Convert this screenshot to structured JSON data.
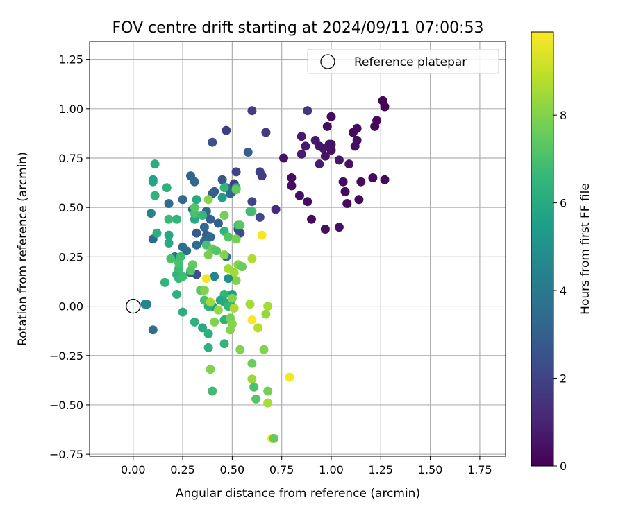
{
  "colors": {
    "grid": "#b0b0b0",
    "axis": "#000000",
    "reference_marker": "#000000",
    "viridis_stops": [
      "#440154",
      "#482878",
      "#3e4989",
      "#31688e",
      "#26828e",
      "#1f9e89",
      "#35b779",
      "#6ece58",
      "#b5de2b",
      "#fde725"
    ]
  },
  "chart_data": {
    "type": "scatter",
    "title": "FOV centre drift starting at 2024/09/11 07:00:53",
    "xlabel": "Angular distance from reference (arcmin)",
    "ylabel": "Rotation from reference (arcmin)",
    "xlim": [
      -0.22,
      1.88
    ],
    "ylim": [
      -0.76,
      1.34
    ],
    "xticks": [
      "0.00",
      "0.25",
      "0.50",
      "0.75",
      "1.00",
      "1.25",
      "1.50",
      "1.75"
    ],
    "xtick_values": [
      0,
      0.25,
      0.5,
      0.75,
      1.0,
      1.25,
      1.5,
      1.75
    ],
    "yticks": [
      "−0.75",
      "−0.50",
      "−0.25",
      "0.00",
      "0.25",
      "0.50",
      "0.75",
      "1.00",
      "1.25"
    ],
    "ytick_values": [
      -0.75,
      -0.5,
      -0.25,
      0,
      0.25,
      0.5,
      0.75,
      1.0,
      1.25
    ],
    "grid": true,
    "legend": {
      "placement": "top-right",
      "entries": [
        "Reference platepar"
      ]
    },
    "reference_point": {
      "x": 0.0,
      "y": 0.0
    },
    "colorbar": {
      "label": "Hours from first FF file",
      "range": [
        0,
        9.9
      ],
      "ticks": [
        "0",
        "2",
        "4",
        "6",
        "8"
      ],
      "tick_values": [
        0,
        2,
        4,
        6,
        8
      ],
      "colormap": "viridis"
    },
    "point_fields": [
      "x",
      "y",
      "hours"
    ],
    "points": [
      [
        0.6,
        0.99,
        1.8
      ],
      [
        0.88,
        0.99,
        1.6
      ],
      [
        0.47,
        0.89,
        1.8
      ],
      [
        0.67,
        0.88,
        1.7
      ],
      [
        0.4,
        0.83,
        2.5
      ],
      [
        0.58,
        0.78,
        3.0
      ],
      [
        1.0,
        0.96,
        0.3
      ],
      [
        0.98,
        0.91,
        0.4
      ],
      [
        1.26,
        1.04,
        0.1
      ],
      [
        1.27,
        1.01,
        0.1
      ],
      [
        1.23,
        0.94,
        0.2
      ],
      [
        1.22,
        0.91,
        0.2
      ],
      [
        1.13,
        0.9,
        0.3
      ],
      [
        1.11,
        0.88,
        0.3
      ],
      [
        1.13,
        0.84,
        0.4
      ],
      [
        1.12,
        0.81,
        0.4
      ],
      [
        0.85,
        0.86,
        0.7
      ],
      [
        0.92,
        0.84,
        0.7
      ],
      [
        0.94,
        0.81,
        0.6
      ],
      [
        0.96,
        0.8,
        0.6
      ],
      [
        0.99,
        0.82,
        0.5
      ],
      [
        1.0,
        0.82,
        0.5
      ],
      [
        1.0,
        0.79,
        0.5
      ],
      [
        0.97,
        0.76,
        0.5
      ],
      [
        0.87,
        0.81,
        0.7
      ],
      [
        0.85,
        0.77,
        0.7
      ],
      [
        0.94,
        0.72,
        0.8
      ],
      [
        1.04,
        0.74,
        0.6
      ],
      [
        1.09,
        0.72,
        0.5
      ],
      [
        0.76,
        0.75,
        0.5
      ],
      [
        0.8,
        0.65,
        0.4
      ],
      [
        0.8,
        0.61,
        0.4
      ],
      [
        0.84,
        0.56,
        0.4
      ],
      [
        0.88,
        0.53,
        0.4
      ],
      [
        1.06,
        0.63,
        0.3
      ],
      [
        1.07,
        0.58,
        0.3
      ],
      [
        1.15,
        0.63,
        0.3
      ],
      [
        1.21,
        0.65,
        0.3
      ],
      [
        1.27,
        0.64,
        0.2
      ],
      [
        1.14,
        0.54,
        0.2
      ],
      [
        1.08,
        0.52,
        0.3
      ],
      [
        0.9,
        0.44,
        0.3
      ],
      [
        0.97,
        0.39,
        0.4
      ],
      [
        1.04,
        0.4,
        0.4
      ],
      [
        0.72,
        0.49,
        1.2
      ],
      [
        0.64,
        0.68,
        1.9
      ],
      [
        0.65,
        0.66,
        1.8
      ],
      [
        0.52,
        0.68,
        2.0
      ],
      [
        0.5,
        0.58,
        1.9
      ],
      [
        0.51,
        0.62,
        1.9
      ],
      [
        0.6,
        0.53,
        2.1
      ],
      [
        0.64,
        0.45,
        2.2
      ],
      [
        0.45,
        0.64,
        2.7
      ],
      [
        0.47,
        0.6,
        3.2
      ],
      [
        0.49,
        0.57,
        3.4
      ],
      [
        0.41,
        0.58,
        2.7
      ],
      [
        0.4,
        0.57,
        3.0
      ],
      [
        0.29,
        0.66,
        3.2
      ],
      [
        0.31,
        0.63,
        3.3
      ],
      [
        0.25,
        0.54,
        3.4
      ],
      [
        0.18,
        0.52,
        3.5
      ],
      [
        0.3,
        0.49,
        3.5
      ],
      [
        0.37,
        0.48,
        3.3
      ],
      [
        0.39,
        0.44,
        3.0
      ],
      [
        0.43,
        0.42,
        3.0
      ],
      [
        0.36,
        0.4,
        3.4
      ],
      [
        0.32,
        0.37,
        2.8
      ],
      [
        0.37,
        0.36,
        3.0
      ],
      [
        0.39,
        0.35,
        3.3
      ],
      [
        0.36,
        0.33,
        3.4
      ],
      [
        0.32,
        0.31,
        3.5
      ],
      [
        0.25,
        0.3,
        3.5
      ],
      [
        0.27,
        0.28,
        3.5
      ],
      [
        0.21,
        0.25,
        3.7
      ],
      [
        0.54,
        0.37,
        2.3
      ],
      [
        0.53,
        0.39,
        2.3
      ],
      [
        0.47,
        0.25,
        3.5
      ],
      [
        0.41,
        0.15,
        4.5
      ],
      [
        0.32,
        0.16,
        2.4
      ],
      [
        0.29,
        0.17,
        3.0
      ],
      [
        0.1,
        0.34,
        3.5
      ],
      [
        0.07,
        0.01,
        4.2
      ],
      [
        0.06,
        0.01,
        4.5
      ],
      [
        0.1,
        -0.12,
        3.6
      ],
      [
        0.09,
        0.47,
        4.5
      ],
      [
        0.1,
        0.64,
        5.5
      ],
      [
        0.1,
        0.63,
        5.8
      ],
      [
        0.11,
        0.72,
        6.1
      ],
      [
        0.11,
        0.56,
        6.4
      ],
      [
        0.17,
        0.6,
        6.3
      ],
      [
        0.12,
        0.37,
        6.2
      ],
      [
        0.18,
        0.36,
        5.9
      ],
      [
        0.18,
        0.32,
        6.0
      ],
      [
        0.16,
        0.12,
        6.5
      ],
      [
        0.22,
        0.06,
        6.3
      ],
      [
        0.25,
        -0.03,
        6.2
      ],
      [
        0.22,
        0.16,
        6.4
      ],
      [
        0.23,
        0.14,
        6.6
      ],
      [
        0.25,
        0.15,
        6.8
      ],
      [
        0.23,
        0.19,
        6.8
      ],
      [
        0.23,
        0.22,
        7.0
      ],
      [
        0.24,
        0.25,
        6.8
      ],
      [
        0.19,
        0.24,
        7.0
      ],
      [
        0.22,
        0.44,
        6.5
      ],
      [
        0.18,
        0.44,
        6.7
      ],
      [
        0.31,
        0.44,
        6.0
      ],
      [
        0.31,
        0.47,
        7.0
      ],
      [
        0.31,
        0.5,
        7.2
      ],
      [
        0.35,
        0.46,
        6.6
      ],
      [
        0.32,
        0.54,
        6.0
      ],
      [
        0.38,
        0.54,
        8.1
      ],
      [
        0.45,
        0.55,
        5.5
      ],
      [
        0.46,
        0.6,
        6.5
      ],
      [
        0.52,
        0.6,
        6.2
      ],
      [
        0.53,
        0.41,
        6.8
      ],
      [
        0.54,
        0.41,
        7.3
      ],
      [
        0.46,
        0.46,
        7.8
      ],
      [
        0.46,
        0.38,
        6.5
      ],
      [
        0.48,
        0.35,
        7.2
      ],
      [
        0.52,
        0.34,
        7.8
      ],
      [
        0.37,
        0.31,
        7.0
      ],
      [
        0.4,
        0.29,
        7.5
      ],
      [
        0.42,
        0.28,
        7.2
      ],
      [
        0.38,
        0.26,
        7.8
      ],
      [
        0.46,
        0.26,
        8.0
      ],
      [
        0.3,
        0.21,
        7.5
      ],
      [
        0.29,
        0.18,
        7.2
      ],
      [
        0.34,
        0.08,
        7.3
      ],
      [
        0.36,
        0.08,
        8.0
      ],
      [
        0.37,
        0.14,
        9.8
      ],
      [
        0.48,
        0.19,
        8.5
      ],
      [
        0.53,
        0.21,
        8.0
      ],
      [
        0.55,
        0.2,
        7.6
      ],
      [
        0.51,
        0.17,
        8.5
      ],
      [
        0.52,
        0.13,
        8.0
      ],
      [
        0.48,
        0.14,
        5.0
      ],
      [
        0.5,
        0.06,
        5.5
      ],
      [
        0.46,
        0.06,
        6.5
      ],
      [
        0.44,
        0.03,
        5.8
      ],
      [
        0.46,
        0.02,
        6.0
      ],
      [
        0.49,
        0.02,
        6.0
      ],
      [
        0.5,
        0.04,
        8.0
      ],
      [
        0.48,
        0.0,
        6.5
      ],
      [
        0.4,
        0.0,
        5.6
      ],
      [
        0.38,
        0.0,
        6.2
      ],
      [
        0.36,
        0.03,
        7.0
      ],
      [
        0.39,
        0.02,
        8.5
      ],
      [
        0.43,
        -0.02,
        8.3
      ],
      [
        0.46,
        -0.07,
        6.3
      ],
      [
        0.49,
        -0.06,
        7.8
      ],
      [
        0.5,
        -0.09,
        8.1
      ],
      [
        0.49,
        -0.12,
        8.0
      ],
      [
        0.51,
        -0.01,
        8.6
      ],
      [
        0.41,
        -0.08,
        8.0
      ],
      [
        0.35,
        -0.11,
        6.0
      ],
      [
        0.31,
        -0.08,
        6.3
      ],
      [
        0.38,
        -0.14,
        6.2
      ],
      [
        0.38,
        -0.21,
        6.3
      ],
      [
        0.46,
        -0.19,
        6.5
      ],
      [
        0.54,
        -0.22,
        8.0
      ],
      [
        0.59,
        0.01,
        8.5
      ],
      [
        0.6,
        -0.07,
        9.9
      ],
      [
        0.63,
        -0.11,
        8.8
      ],
      [
        0.67,
        -0.04,
        8.3
      ],
      [
        0.68,
        0.0,
        8.6
      ],
      [
        0.66,
        -0.22,
        8.0
      ],
      [
        0.6,
        -0.29,
        7.6
      ],
      [
        0.6,
        -0.37,
        8.4
      ],
      [
        0.61,
        -0.41,
        7.0
      ],
      [
        0.62,
        -0.47,
        7.2
      ],
      [
        0.68,
        -0.43,
        7.8
      ],
      [
        0.68,
        -0.49,
        8.6
      ],
      [
        0.79,
        -0.36,
        9.8
      ],
      [
        0.7,
        -0.67,
        9.9
      ],
      [
        0.71,
        -0.67,
        7.5
      ],
      [
        0.39,
        -0.32,
        8.0
      ],
      [
        0.4,
        -0.43,
        6.8
      ],
      [
        0.6,
        0.24,
        8.7
      ],
      [
        0.65,
        0.36,
        9.8
      ],
      [
        0.6,
        0.48,
        7.0
      ],
      [
        0.52,
        0.59,
        7.5
      ],
      [
        0.59,
        0.48,
        6.8
      ]
    ]
  }
}
